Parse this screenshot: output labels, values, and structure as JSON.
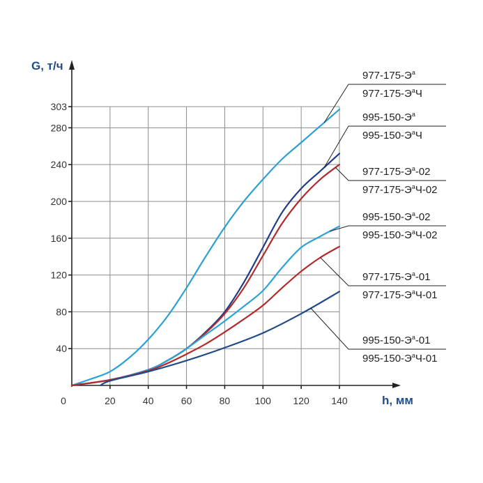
{
  "chart_data": {
    "type": "line",
    "title": "",
    "ylabel": "G, т/ч",
    "xlabel": "h, мм",
    "xlim": [
      0,
      140
    ],
    "ylim": [
      0,
      303
    ],
    "x_ticks": [
      0,
      20,
      40,
      60,
      80,
      100,
      120,
      140
    ],
    "y_ticks": [
      40,
      80,
      120,
      160,
      200,
      240,
      280,
      303
    ],
    "grid": true,
    "legend_placement": "right",
    "series": [
      {
        "id": "s1",
        "color": "#2a9fd6",
        "labels": [
          {
            "main": "977-175-Э",
            "sup": "а",
            "tail": ""
          },
          {
            "main": "977-175-Э",
            "sup": "а",
            "tail": "Ч"
          }
        ],
        "x": [
          0,
          10,
          20,
          30,
          40,
          50,
          60,
          70,
          80,
          90,
          100,
          110,
          120,
          130,
          140
        ],
        "values": [
          0,
          7,
          15,
          30,
          50,
          75,
          106,
          140,
          172,
          200,
          224,
          246,
          264,
          282,
          300
        ]
      },
      {
        "id": "s2",
        "color": "#1f3c88",
        "labels": [
          {
            "main": "995-150-Э",
            "sup": "а",
            "tail": ""
          },
          {
            "main": "995-150-Э",
            "sup": "а",
            "tail": "Ч"
          }
        ],
        "x": [
          0,
          20,
          40,
          50,
          60,
          70,
          80,
          90,
          100,
          110,
          120,
          130,
          140
        ],
        "values": [
          0,
          6,
          17,
          27,
          40,
          58,
          80,
          112,
          150,
          188,
          214,
          233,
          252
        ]
      },
      {
        "id": "s3",
        "color": "#b22a2a",
        "labels": [
          {
            "main": "977-175-Э",
            "sup": "а",
            "tail": "-02"
          },
          {
            "main": "977-175-Э",
            "sup": "а",
            "tail": "Ч-02"
          }
        ],
        "x": [
          0,
          20,
          40,
          50,
          60,
          70,
          80,
          90,
          100,
          110,
          120,
          130,
          140
        ],
        "values": [
          0,
          6,
          17,
          27,
          40,
          57,
          78,
          106,
          141,
          176,
          203,
          224,
          240
        ]
      },
      {
        "id": "s4",
        "color": "#2aa3d8",
        "labels": [
          {
            "main": "995-150-Э",
            "sup": "а",
            "tail": "-02"
          },
          {
            "main": "995-150-Э",
            "sup": "а",
            "tail": "Ч-02"
          }
        ],
        "x": [
          0,
          20,
          40,
          50,
          60,
          70,
          80,
          90,
          100,
          110,
          120,
          130,
          140
        ],
        "values": [
          0,
          6,
          17,
          27,
          40,
          55,
          70,
          86,
          103,
          128,
          150,
          162,
          173
        ]
      },
      {
        "id": "s5",
        "color": "#b22a2a",
        "labels": [
          {
            "main": "977-175-Э",
            "sup": "а",
            "tail": "-01"
          },
          {
            "main": "977-175-Э",
            "sup": "а",
            "tail": "Ч-01"
          }
        ],
        "x": [
          0,
          20,
          40,
          50,
          60,
          70,
          80,
          90,
          100,
          110,
          120,
          130,
          140
        ],
        "values": [
          0,
          6,
          16,
          24,
          34,
          45,
          58,
          72,
          87,
          106,
          124,
          139,
          151
        ]
      },
      {
        "id": "s6",
        "color": "#1f4a8c",
        "labels": [
          {
            "main": "995-150-Э",
            "sup": "а",
            "tail": "-01"
          },
          {
            "main": "995-150-Э",
            "sup": "а",
            "tail": "Ч-01"
          }
        ],
        "x": [
          15,
          20,
          40,
          60,
          80,
          100,
          120,
          140
        ],
        "values": [
          0,
          5,
          15,
          27,
          41,
          57,
          78,
          102
        ]
      }
    ]
  }
}
